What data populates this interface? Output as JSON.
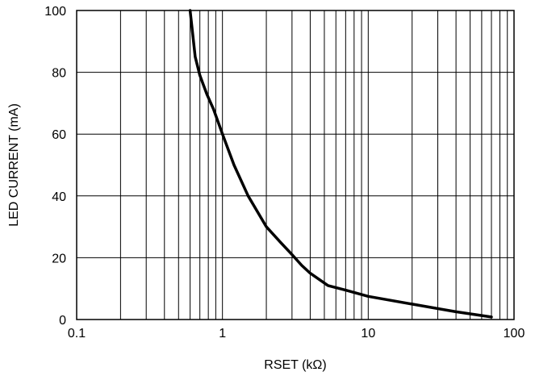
{
  "chart_data": {
    "type": "line",
    "title": "",
    "xlabel": "RSET (kΩ)",
    "ylabel": "LED CURRENT (mA)",
    "x_scale": "log",
    "xlim": [
      0.1,
      100
    ],
    "ylim": [
      0,
      100
    ],
    "x_ticks": [
      {
        "value": 0.1,
        "label": "0.1"
      },
      {
        "value": 1,
        "label": "1"
      },
      {
        "value": 10,
        "label": "10"
      },
      {
        "value": 100,
        "label": "100"
      }
    ],
    "y_ticks": [
      {
        "value": 0,
        "label": "0"
      },
      {
        "value": 20,
        "label": "20"
      },
      {
        "value": 40,
        "label": "40"
      },
      {
        "value": 60,
        "label": "60"
      },
      {
        "value": 80,
        "label": "80"
      },
      {
        "value": 100,
        "label": "100"
      }
    ],
    "grid": true,
    "legend": "none",
    "series": [
      {
        "color": "#000000",
        "x": [
          0.6,
          0.65,
          0.7,
          0.78,
          0.87,
          1.0,
          1.2,
          1.5,
          2.0,
          2.5,
          3.0,
          3.5,
          4.0,
          5.3,
          7.0,
          10,
          20,
          40,
          70
        ],
        "y": [
          100,
          85,
          79,
          73,
          68,
          60,
          50,
          40,
          30,
          25,
          21,
          17.5,
          15,
          11,
          9.5,
          7.5,
          5,
          2.5,
          0.8
        ]
      }
    ]
  }
}
